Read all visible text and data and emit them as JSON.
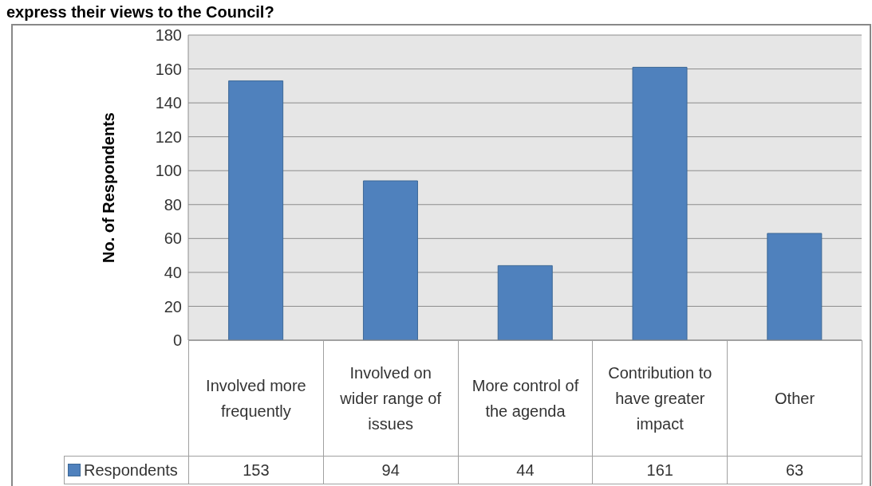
{
  "chart_data": {
    "type": "bar",
    "title": "express their views to the Council?",
    "ylabel": "No. of Respondents",
    "categories": [
      "Involved more frequently",
      "Involved on wider range of issues",
      "More control of the agenda",
      "Contribution to have greater impact",
      "Other"
    ],
    "series": [
      {
        "name": "Respondents",
        "color": "#4f81bd",
        "values": [
          153,
          94,
          44,
          161,
          63
        ]
      }
    ],
    "ylim": [
      0,
      180
    ],
    "yticks": [
      0,
      20,
      40,
      60,
      80,
      100,
      120,
      140,
      160,
      180
    ],
    "grid": "y",
    "legend": "bottom",
    "data_labels": true
  }
}
